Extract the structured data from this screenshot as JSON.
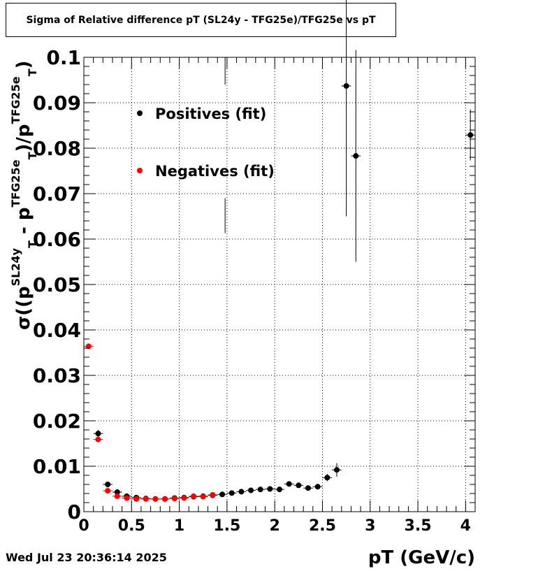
{
  "title": "Sigma of Relative difference pT (SL24y - TFG25e)/TFG25e vs pT",
  "timestamp": "Wed Jul 23 20:36:14 2025",
  "chart_data": {
    "type": "scatter",
    "xlabel": "pT (GeV/c)",
    "ylabel": {
      "prefix": "σ((p",
      "sup1": "SL24y",
      "sub1": "T",
      "mid": " - p",
      "sup2": "TFG25e",
      "sub2": "T",
      "mid2": ")/p",
      "sup3": "TFG25e",
      "sub3": "T",
      "suffix": ")"
    },
    "xlim": [
      0,
      4.1
    ],
    "ylim": [
      0,
      0.1
    ],
    "xticks": [
      0,
      0.5,
      1,
      1.5,
      2,
      2.5,
      3,
      3.5,
      4
    ],
    "xtick_labels": [
      "0",
      "0.5",
      "1",
      "1.5",
      "2",
      "2.5",
      "3",
      "3.5",
      "4"
    ],
    "yticks": [
      0,
      0.01,
      0.02,
      0.03,
      0.04,
      0.05,
      0.06,
      0.07,
      0.08,
      0.09,
      0.1
    ],
    "ytick_labels": [
      "0",
      "0.01",
      "0.02",
      "0.03",
      "0.04",
      "0.05",
      "0.06",
      "0.07",
      "0.08",
      "0.09",
      "0.1"
    ],
    "grid": true,
    "legend_position": "top-left inside",
    "series": [
      {
        "name": "Positives (fit)",
        "color": "#000000",
        "points": [
          {
            "x": 0.15,
            "y": 0.0172,
            "err": 0.0008
          },
          {
            "x": 0.25,
            "y": 0.006,
            "err": 0.0004
          },
          {
            "x": 0.35,
            "y": 0.0043,
            "err": 0.0003
          },
          {
            "x": 0.45,
            "y": 0.0034,
            "err": 0.0002
          },
          {
            "x": 0.55,
            "y": 0.0031,
            "err": 0.0002
          },
          {
            "x": 0.65,
            "y": 0.0029,
            "err": 0.0002
          },
          {
            "x": 0.75,
            "y": 0.0028,
            "err": 0.0002
          },
          {
            "x": 0.85,
            "y": 0.0028,
            "err": 0.0002
          },
          {
            "x": 0.95,
            "y": 0.003,
            "err": 0.0002
          },
          {
            "x": 1.05,
            "y": 0.0031,
            "err": 0.0002
          },
          {
            "x": 1.15,
            "y": 0.0033,
            "err": 0.0002
          },
          {
            "x": 1.25,
            "y": 0.0034,
            "err": 0.0002
          },
          {
            "x": 1.35,
            "y": 0.0036,
            "err": 0.0002
          },
          {
            "x": 1.45,
            "y": 0.0038,
            "err": 0.0003
          },
          {
            "x": 1.55,
            "y": 0.0041,
            "err": 0.0003
          },
          {
            "x": 1.65,
            "y": 0.0044,
            "err": 0.0003
          },
          {
            "x": 1.75,
            "y": 0.0047,
            "err": 0.0003
          },
          {
            "x": 1.85,
            "y": 0.0049,
            "err": 0.0003
          },
          {
            "x": 1.95,
            "y": 0.005,
            "err": 0.0003
          },
          {
            "x": 2.05,
            "y": 0.0049,
            "err": 0.0004
          },
          {
            "x": 2.15,
            "y": 0.0061,
            "err": 0.0005
          },
          {
            "x": 2.25,
            "y": 0.0058,
            "err": 0.0005
          },
          {
            "x": 2.35,
            "y": 0.0052,
            "err": 0.0005
          },
          {
            "x": 2.45,
            "y": 0.0055,
            "err": 0.0006
          },
          {
            "x": 2.55,
            "y": 0.0075,
            "err": 0.0008
          },
          {
            "x": 2.65,
            "y": 0.0092,
            "err": 0.0015
          },
          {
            "x": 2.75,
            "y": 0.0937,
            "err": 0.0287
          },
          {
            "x": 2.85,
            "y": 0.0783,
            "err": 0.0233
          },
          {
            "x": 4.05,
            "y": 0.0829,
            "err": 0.0056
          }
        ]
      },
      {
        "name": "Negatives (fit)",
        "color": "#ff0000",
        "points": [
          {
            "x": 0.05,
            "y": 0.0364,
            "err": 0.0003
          },
          {
            "x": 0.15,
            "y": 0.0159,
            "err": 0.0004
          },
          {
            "x": 0.25,
            "y": 0.0046,
            "err": 0.0003
          },
          {
            "x": 0.35,
            "y": 0.0034,
            "err": 0.0002
          },
          {
            "x": 0.45,
            "y": 0.003,
            "err": 0.0002
          },
          {
            "x": 0.55,
            "y": 0.0028,
            "err": 0.0002
          },
          {
            "x": 0.65,
            "y": 0.0028,
            "err": 0.0002
          },
          {
            "x": 0.75,
            "y": 0.0028,
            "err": 0.0002
          },
          {
            "x": 0.85,
            "y": 0.0028,
            "err": 0.0002
          },
          {
            "x": 0.95,
            "y": 0.0029,
            "err": 0.0002
          },
          {
            "x": 1.05,
            "y": 0.003,
            "err": 0.0002
          },
          {
            "x": 1.15,
            "y": 0.0034,
            "err": 0.0002
          },
          {
            "x": 1.25,
            "y": 0.0033,
            "err": 0.0002
          },
          {
            "x": 1.35,
            "y": 0.0037,
            "err": 0.0002
          }
        ]
      }
    ],
    "orphan_error_bars": [
      {
        "x": 1.48,
        "y_low": 0.094,
        "y_high": 0.1
      },
      {
        "x": 1.48,
        "y_low": 0.0613,
        "y_high": 0.069
      }
    ]
  }
}
